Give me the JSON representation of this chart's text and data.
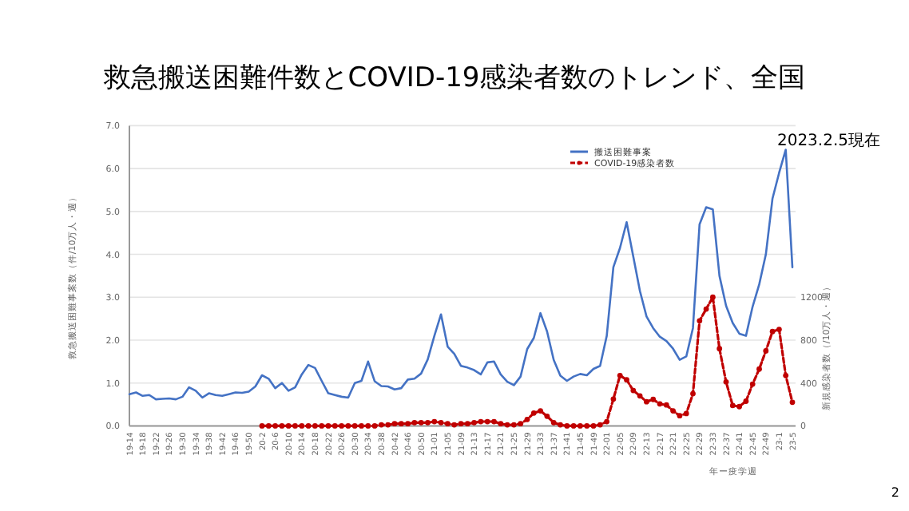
{
  "chart_data": {
    "type": "line",
    "title": "救急搬送困難件数とCOVID-19感染者数のトレンド、全国",
    "subtitle": "2023.2.5現在",
    "xlabel": "年ー疫学週",
    "ylabel": "救急搬送困難事案数（件/10万人・週）",
    "y2label": "新規感染者数（/10万人・週）",
    "annotations": [
      "2"
    ],
    "categories": [
      "19-14",
      null,
      "19-18",
      null,
      "19-22",
      null,
      "19-26",
      null,
      "19-30",
      null,
      "19-34",
      null,
      "19-38",
      null,
      "19-42",
      null,
      "19-46",
      null,
      "19-50",
      null,
      "20-2",
      null,
      "20-6",
      null,
      "20-10",
      null,
      "20-14",
      null,
      "20-18",
      null,
      "20-22",
      null,
      "20-26",
      null,
      "20-30",
      null,
      "20-34",
      null,
      "20-38",
      null,
      "20-42",
      null,
      "20-46",
      null,
      "20-50",
      null,
      "21-01",
      null,
      "21-05",
      null,
      "21-09",
      null,
      "21-13",
      null,
      "21-17",
      null,
      "21-21",
      null,
      "21-25",
      null,
      "21-29",
      null,
      "21-33",
      null,
      "21-37",
      null,
      "21-41",
      null,
      "21-45",
      null,
      "21-49",
      null,
      "22-01",
      null,
      "22-05",
      null,
      "22-09",
      null,
      "22-13",
      null,
      "22-17",
      null,
      "22-21",
      null,
      "22-25",
      null,
      "22-29",
      null,
      "22-33",
      null,
      "22-37",
      null,
      "22-41",
      null,
      "22-45",
      null,
      "22-49",
      null,
      "23-1",
      null,
      "23-5"
    ],
    "series": [
      {
        "name": "搬送困難事案",
        "color": "#4472c4",
        "marker": "none",
        "line_style": "solid",
        "values": [
          0.74,
          0.78,
          0.7,
          0.72,
          0.62,
          0.63,
          0.64,
          0.62,
          0.68,
          0.9,
          0.82,
          0.66,
          0.76,
          0.72,
          0.7,
          0.74,
          0.78,
          0.77,
          0.8,
          0.92,
          1.18,
          1.1,
          0.88,
          1.0,
          0.82,
          0.9,
          1.2,
          1.42,
          1.35,
          1.05,
          0.76,
          0.72,
          0.68,
          0.66,
          1.0,
          1.05,
          1.5,
          1.04,
          0.93,
          0.92,
          0.85,
          0.88,
          1.08,
          1.1,
          1.22,
          1.55,
          2.1,
          2.6,
          1.85,
          1.68,
          1.4,
          1.36,
          1.3,
          1.2,
          1.48,
          1.5,
          1.2,
          1.03,
          0.95,
          1.15,
          1.79,
          2.05,
          2.63,
          2.2,
          1.54,
          1.17,
          1.05,
          1.15,
          1.21,
          1.18,
          1.33,
          1.4,
          2.1,
          3.7,
          4.15,
          4.75,
          3.95,
          3.15,
          2.55,
          2.28,
          2.08,
          1.98,
          1.8,
          1.54,
          1.62,
          2.28,
          4.7,
          5.1,
          5.05,
          3.5,
          2.8,
          2.4,
          2.15,
          2.1,
          2.78,
          3.3,
          4.0,
          5.3,
          5.9,
          6.44,
          3.7
        ]
      },
      {
        "name": "COVID-19感染者数",
        "color": "#c00000",
        "axis": "y2",
        "marker": "circle",
        "line_style": "dashed",
        "values": [
          null,
          null,
          null,
          null,
          null,
          null,
          null,
          null,
          null,
          null,
          null,
          null,
          null,
          null,
          null,
          null,
          null,
          null,
          null,
          null,
          0,
          0,
          0,
          0,
          0,
          0,
          0,
          0,
          0,
          0,
          0,
          0,
          0,
          0,
          0,
          0,
          0,
          0,
          10,
          10,
          20,
          20,
          20,
          30,
          30,
          30,
          40,
          30,
          20,
          10,
          20,
          20,
          30,
          40,
          40,
          40,
          20,
          10,
          10,
          20,
          60,
          120,
          140,
          90,
          30,
          10,
          0,
          0,
          0,
          0,
          0,
          10,
          40,
          250,
          470,
          430,
          330,
          280,
          225,
          247,
          205,
          195,
          140,
          95,
          115,
          300,
          980,
          1090,
          1200,
          720,
          410,
          190,
          180,
          230,
          390,
          530,
          700,
          880,
          900,
          470,
          220
        ]
      }
    ],
    "ylim": [
      0,
      7
    ],
    "yticks": [
      {
        "value": 0,
        "label": "0.0"
      },
      {
        "value": 1,
        "label": "1.0"
      },
      {
        "value": 2,
        "label": "2.0"
      },
      {
        "value": 3,
        "label": "3.0"
      },
      {
        "value": 4,
        "label": "4.0"
      },
      {
        "value": 5,
        "label": "5.0"
      },
      {
        "value": 6,
        "label": "6.0"
      },
      {
        "value": 7,
        "label": "7.0"
      }
    ],
    "y2lim": [
      0,
      2800
    ],
    "y2ticks": [
      0,
      400,
      800,
      1200
    ],
    "grid": "y",
    "legend": "top right"
  }
}
